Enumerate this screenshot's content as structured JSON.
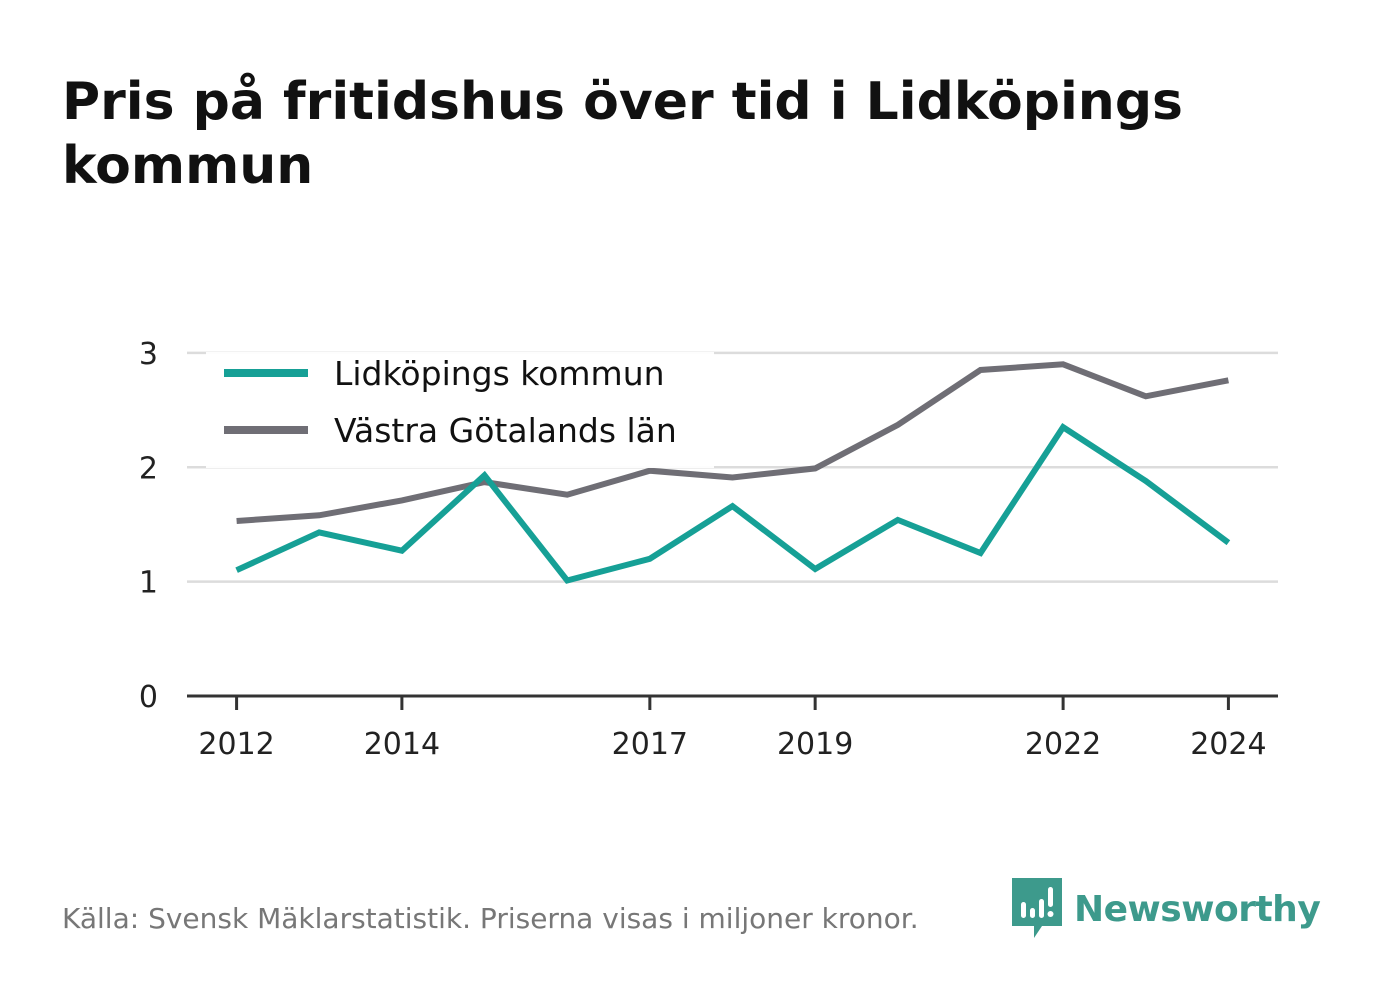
{
  "title": "Pris på fritidshus över tid i Lidköpings kommun",
  "source": "Källa: Svensk Mäklarstatistik. Priserna visas i miljoner kronor.",
  "brand": {
    "name": "Newsworthy",
    "icon": "newsworthy-logo-icon",
    "color": "#3d9a8c"
  },
  "chart_data": {
    "type": "line",
    "x": [
      2012,
      2013,
      2014,
      2015,
      2016,
      2017,
      2018,
      2019,
      2020,
      2021,
      2022,
      2023,
      2024
    ],
    "x_tick_labels": [
      "2012",
      "2014",
      "2017",
      "2019",
      "2022",
      "2024"
    ],
    "y_tick_labels": [
      "0",
      "1",
      "2",
      "3"
    ],
    "ylim": [
      0,
      3.2
    ],
    "xlim": [
      2011.4,
      2024.6
    ],
    "grid": true,
    "legend_position": "top-left",
    "series": [
      {
        "name": "Lidköpings kommun",
        "color": "#16a096",
        "values": [
          1.1,
          1.43,
          1.27,
          1.93,
          1.01,
          1.2,
          1.66,
          1.11,
          1.54,
          1.25,
          2.35,
          1.88,
          1.34
        ]
      },
      {
        "name": "Västra Götalands län",
        "color": "#6f6e75",
        "values": [
          1.53,
          1.58,
          1.71,
          1.87,
          1.76,
          1.97,
          1.91,
          1.99,
          2.37,
          2.85,
          2.9,
          2.62,
          2.76
        ]
      }
    ]
  }
}
